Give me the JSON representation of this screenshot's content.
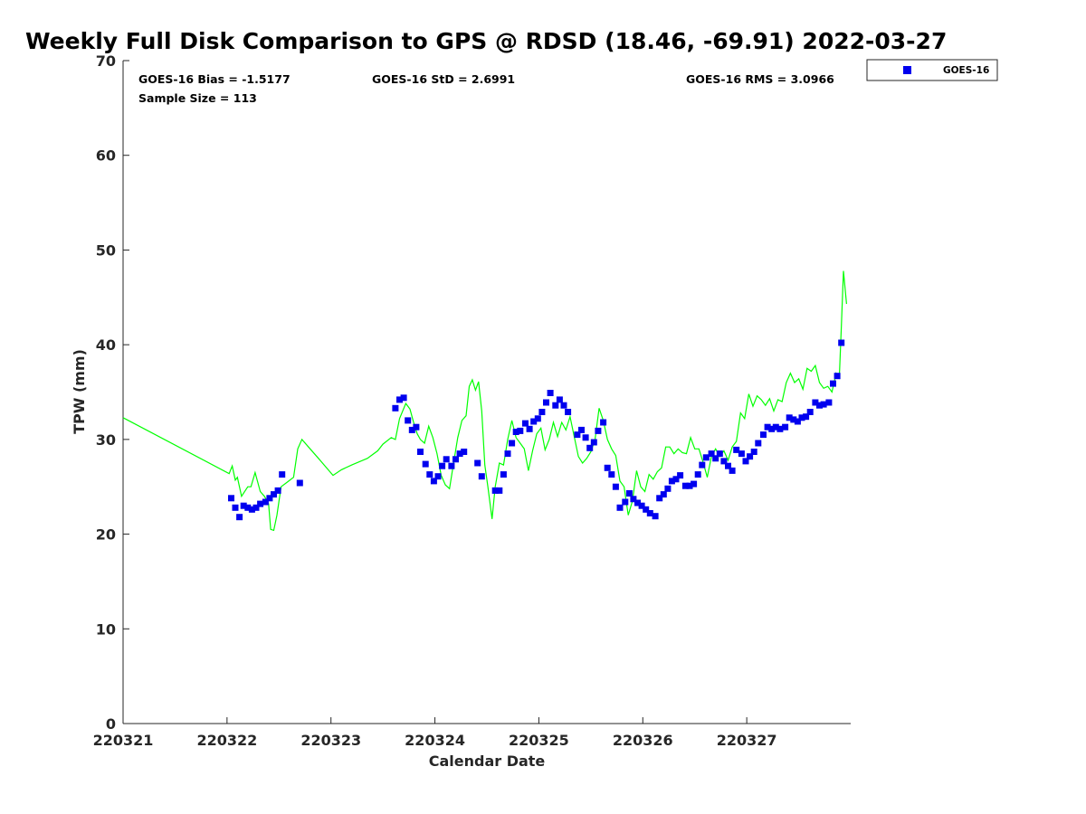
{
  "chart_data": {
    "type": "scatter",
    "title": "Weekly Full Disk Comparison to GPS @ RDSD (18.46, -69.91) 2022-03-27",
    "xlabel": "Calendar Date",
    "ylabel": "TPW (mm)",
    "xlim": [
      220321,
      220328
    ],
    "ylim": [
      0,
      70
    ],
    "x_ticks": [
      {
        "value": 220321,
        "label": "220321"
      },
      {
        "value": 220322,
        "label": "220322"
      },
      {
        "value": 220323,
        "label": "220323"
      },
      {
        "value": 220324,
        "label": "220324"
      },
      {
        "value": 220325,
        "label": "220325"
      },
      {
        "value": 220326,
        "label": "220326"
      },
      {
        "value": 220327,
        "label": "220327"
      }
    ],
    "y_ticks": [
      0,
      10,
      20,
      30,
      40,
      50,
      60,
      70
    ],
    "grid": false,
    "legend_position": "top-right",
    "stats": {
      "bias": "GOES-16 Bias = -1.5177",
      "std": "GOES-16 StD = 2.6991",
      "rms": "GOES-16 RMS = 3.0966",
      "sample": "Sample Size = 113"
    },
    "series": [
      {
        "name": "GOES-16",
        "type": "scatter",
        "marker": "square",
        "color": "#0000ee",
        "points": [
          [
            220322.04,
            23.8
          ],
          [
            220322.08,
            22.8
          ],
          [
            220322.12,
            21.8
          ],
          [
            220322.16,
            23.0
          ],
          [
            220322.2,
            22.8
          ],
          [
            220322.24,
            22.6
          ],
          [
            220322.28,
            22.8
          ],
          [
            220322.32,
            23.2
          ],
          [
            220322.37,
            23.4
          ],
          [
            220322.41,
            23.8
          ],
          [
            220322.45,
            24.2
          ],
          [
            220322.49,
            24.6
          ],
          [
            220322.53,
            26.3
          ],
          [
            220322.7,
            25.4
          ],
          [
            220323.62,
            33.3
          ],
          [
            220323.66,
            34.2
          ],
          [
            220323.7,
            34.4
          ],
          [
            220323.74,
            32.0
          ],
          [
            220323.78,
            31.0
          ],
          [
            220323.82,
            31.3
          ],
          [
            220323.86,
            28.7
          ],
          [
            220323.91,
            27.4
          ],
          [
            220323.95,
            26.3
          ],
          [
            220323.99,
            25.6
          ],
          [
            220324.03,
            26.1
          ],
          [
            220324.07,
            27.2
          ],
          [
            220324.11,
            27.9
          ],
          [
            220324.16,
            27.2
          ],
          [
            220324.2,
            27.9
          ],
          [
            220324.24,
            28.5
          ],
          [
            220324.28,
            28.7
          ],
          [
            220324.41,
            27.5
          ],
          [
            220324.45,
            26.1
          ],
          [
            220324.58,
            24.6
          ],
          [
            220324.62,
            24.6
          ],
          [
            220324.66,
            26.3
          ],
          [
            220324.7,
            28.5
          ],
          [
            220324.74,
            29.6
          ],
          [
            220324.78,
            30.8
          ],
          [
            220324.82,
            30.9
          ],
          [
            220324.87,
            31.7
          ],
          [
            220324.91,
            31.1
          ],
          [
            220324.95,
            31.9
          ],
          [
            220324.99,
            32.2
          ],
          [
            220325.03,
            32.9
          ],
          [
            220325.07,
            33.9
          ],
          [
            220325.11,
            34.9
          ],
          [
            220325.16,
            33.6
          ],
          [
            220325.2,
            34.2
          ],
          [
            220325.24,
            33.6
          ],
          [
            220325.28,
            32.9
          ],
          [
            220325.37,
            30.5
          ],
          [
            220325.41,
            31.0
          ],
          [
            220325.45,
            30.2
          ],
          [
            220325.49,
            29.1
          ],
          [
            220325.53,
            29.7
          ],
          [
            220325.57,
            30.9
          ],
          [
            220325.62,
            31.8
          ],
          [
            220325.66,
            27.0
          ],
          [
            220325.7,
            26.3
          ],
          [
            220325.74,
            25.0
          ],
          [
            220325.78,
            22.8
          ],
          [
            220325.83,
            23.4
          ],
          [
            220325.87,
            24.3
          ],
          [
            220325.91,
            23.7
          ],
          [
            220325.95,
            23.3
          ],
          [
            220325.99,
            23.0
          ],
          [
            220326.03,
            22.6
          ],
          [
            220326.07,
            22.2
          ],
          [
            220326.12,
            21.9
          ],
          [
            220326.16,
            23.8
          ],
          [
            220326.2,
            24.2
          ],
          [
            220326.24,
            24.8
          ],
          [
            220326.28,
            25.6
          ],
          [
            220326.32,
            25.8
          ],
          [
            220326.36,
            26.2
          ],
          [
            220326.41,
            25.1
          ],
          [
            220326.45,
            25.1
          ],
          [
            220326.49,
            25.3
          ],
          [
            220326.53,
            26.3
          ],
          [
            220326.57,
            27.3
          ],
          [
            220326.61,
            28.1
          ],
          [
            220326.66,
            28.5
          ],
          [
            220326.7,
            28.0
          ],
          [
            220326.74,
            28.5
          ],
          [
            220326.78,
            27.7
          ],
          [
            220326.82,
            27.2
          ],
          [
            220326.86,
            26.7
          ],
          [
            220326.9,
            28.9
          ],
          [
            220326.95,
            28.5
          ],
          [
            220326.99,
            27.7
          ],
          [
            220327.03,
            28.2
          ],
          [
            220327.07,
            28.7
          ],
          [
            220327.11,
            29.6
          ],
          [
            220327.16,
            30.5
          ],
          [
            220327.2,
            31.3
          ],
          [
            220327.24,
            31.1
          ],
          [
            220327.28,
            31.3
          ],
          [
            220327.32,
            31.1
          ],
          [
            220327.37,
            31.3
          ],
          [
            220327.41,
            32.3
          ],
          [
            220327.45,
            32.1
          ],
          [
            220327.49,
            31.9
          ],
          [
            220327.53,
            32.3
          ],
          [
            220327.57,
            32.4
          ],
          [
            220327.61,
            32.9
          ],
          [
            220327.66,
            33.9
          ],
          [
            220327.7,
            33.6
          ],
          [
            220327.74,
            33.7
          ],
          [
            220327.79,
            33.9
          ],
          [
            220327.83,
            35.9
          ],
          [
            220327.87,
            36.7
          ],
          [
            220327.91,
            40.2
          ]
        ]
      },
      {
        "type": "line",
        "color": "#00ff00",
        "points": [
          [
            220321.0,
            32.3
          ],
          [
            220322.02,
            26.4
          ],
          [
            220322.05,
            27.2
          ],
          [
            220322.08,
            25.7
          ],
          [
            220322.1,
            26.0
          ],
          [
            220322.14,
            24.0
          ],
          [
            220322.2,
            25.0
          ],
          [
            220322.23,
            25.0
          ],
          [
            220322.27,
            26.5
          ],
          [
            220322.32,
            24.5
          ],
          [
            220322.36,
            24.0
          ],
          [
            220322.4,
            23.2
          ],
          [
            220322.42,
            20.5
          ],
          [
            220322.45,
            20.4
          ],
          [
            220322.48,
            22.0
          ],
          [
            220322.52,
            25.0
          ],
          [
            220322.58,
            25.5
          ],
          [
            220322.64,
            26.0
          ],
          [
            220322.68,
            29.0
          ],
          [
            220322.72,
            30.0
          ],
          [
            220322.8,
            29.0
          ],
          [
            220322.88,
            28.0
          ],
          [
            220323.02,
            26.2
          ],
          [
            220323.1,
            26.8
          ],
          [
            220323.2,
            27.3
          ],
          [
            220323.35,
            28.0
          ],
          [
            220323.45,
            28.8
          ],
          [
            220323.5,
            29.5
          ],
          [
            220323.58,
            30.2
          ],
          [
            220323.62,
            30.0
          ],
          [
            220323.66,
            32.2
          ],
          [
            220323.72,
            33.8
          ],
          [
            220323.76,
            33.2
          ],
          [
            220323.8,
            31.6
          ],
          [
            220323.83,
            30.6
          ],
          [
            220323.86,
            30.0
          ],
          [
            220323.9,
            29.6
          ],
          [
            220323.94,
            31.4
          ],
          [
            220323.98,
            30.2
          ],
          [
            220324.02,
            28.5
          ],
          [
            220324.06,
            26.2
          ],
          [
            220324.1,
            25.2
          ],
          [
            220324.14,
            24.8
          ],
          [
            220324.18,
            27.5
          ],
          [
            220324.22,
            30.2
          ],
          [
            220324.26,
            32.0
          ],
          [
            220324.3,
            32.5
          ],
          [
            220324.33,
            35.6
          ],
          [
            220324.36,
            36.3
          ],
          [
            220324.39,
            35.2
          ],
          [
            220324.42,
            36.1
          ],
          [
            220324.45,
            33.0
          ],
          [
            220324.48,
            27.3
          ],
          [
            220324.51,
            25.0
          ],
          [
            220324.55,
            21.6
          ],
          [
            220324.58,
            25.0
          ],
          [
            220324.62,
            27.5
          ],
          [
            220324.66,
            27.3
          ],
          [
            220324.7,
            30.0
          ],
          [
            220324.74,
            32.0
          ],
          [
            220324.78,
            30.2
          ],
          [
            220324.82,
            29.6
          ],
          [
            220324.86,
            29.0
          ],
          [
            220324.9,
            26.7
          ],
          [
            220324.94,
            28.8
          ],
          [
            220324.98,
            30.6
          ],
          [
            220325.02,
            31.2
          ],
          [
            220325.06,
            28.9
          ],
          [
            220325.1,
            30.0
          ],
          [
            220325.14,
            31.8
          ],
          [
            220325.18,
            30.3
          ],
          [
            220325.22,
            31.8
          ],
          [
            220325.26,
            31.0
          ],
          [
            220325.3,
            32.4
          ],
          [
            220325.34,
            30.3
          ],
          [
            220325.38,
            28.2
          ],
          [
            220325.42,
            27.5
          ],
          [
            220325.46,
            28.0
          ],
          [
            220325.5,
            28.7
          ],
          [
            220325.54,
            30.0
          ],
          [
            220325.58,
            33.3
          ],
          [
            220325.62,
            32.0
          ],
          [
            220325.66,
            30.0
          ],
          [
            220325.7,
            29.0
          ],
          [
            220325.74,
            28.3
          ],
          [
            220325.78,
            25.6
          ],
          [
            220325.82,
            25.0
          ],
          [
            220325.86,
            22.0
          ],
          [
            220325.9,
            23.5
          ],
          [
            220325.94,
            26.7
          ],
          [
            220325.98,
            25.0
          ],
          [
            220326.02,
            24.5
          ],
          [
            220326.06,
            26.3
          ],
          [
            220326.1,
            25.8
          ],
          [
            220326.14,
            26.6
          ],
          [
            220326.18,
            27.0
          ],
          [
            220326.22,
            29.2
          ],
          [
            220326.26,
            29.2
          ],
          [
            220326.3,
            28.5
          ],
          [
            220326.34,
            29.0
          ],
          [
            220326.38,
            28.6
          ],
          [
            220326.42,
            28.5
          ],
          [
            220326.46,
            30.2
          ],
          [
            220326.5,
            29.0
          ],
          [
            220326.54,
            29.0
          ],
          [
            220326.58,
            27.6
          ],
          [
            220326.62,
            26.0
          ],
          [
            220326.66,
            28.2
          ],
          [
            220326.7,
            29.0
          ],
          [
            220326.74,
            28.2
          ],
          [
            220326.78,
            28.8
          ],
          [
            220326.82,
            27.8
          ],
          [
            220326.86,
            29.2
          ],
          [
            220326.9,
            29.8
          ],
          [
            220326.94,
            32.8
          ],
          [
            220326.98,
            32.2
          ],
          [
            220327.02,
            34.8
          ],
          [
            220327.06,
            33.5
          ],
          [
            220327.1,
            34.6
          ],
          [
            220327.14,
            34.2
          ],
          [
            220327.18,
            33.6
          ],
          [
            220327.22,
            34.3
          ],
          [
            220327.26,
            33.0
          ],
          [
            220327.3,
            34.2
          ],
          [
            220327.34,
            34.0
          ],
          [
            220327.38,
            36.0
          ],
          [
            220327.42,
            37.0
          ],
          [
            220327.46,
            36.0
          ],
          [
            220327.5,
            36.4
          ],
          [
            220327.54,
            35.3
          ],
          [
            220327.58,
            37.5
          ],
          [
            220327.62,
            37.2
          ],
          [
            220327.66,
            37.8
          ],
          [
            220327.7,
            36.0
          ],
          [
            220327.74,
            35.4
          ],
          [
            220327.78,
            35.6
          ],
          [
            220327.82,
            35.0
          ],
          [
            220327.86,
            37.0
          ],
          [
            220327.89,
            36.5
          ],
          [
            220327.91,
            42.0
          ],
          [
            220327.93,
            47.8
          ],
          [
            220327.96,
            44.3
          ]
        ]
      }
    ]
  }
}
